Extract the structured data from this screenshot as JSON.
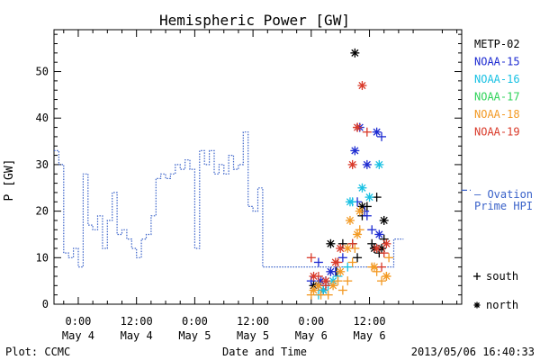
{
  "chart_data": {
    "type": "scatter",
    "title": "Hemispheric Power [GW]",
    "xlabel": "Date and Time",
    "ylabel": "P [GW]",
    "ylim": [
      0,
      59
    ],
    "xlim": [
      -5,
      79
    ],
    "x_unit": "hours since 2013-05-04 00:00 UT",
    "x_ticks": [
      {
        "x": 0,
        "time": "0:00",
        "date": "May 4"
      },
      {
        "x": 12,
        "time": "12:00",
        "date": "May 4"
      },
      {
        "x": 24,
        "time": "0:00",
        "date": "May 5"
      },
      {
        "x": 36,
        "time": "12:00",
        "date": "May 5"
      },
      {
        "x": 48,
        "time": "0:00",
        "date": "May 6"
      },
      {
        "x": 60,
        "time": "12:00",
        "date": "May 6"
      }
    ],
    "y_ticks": [
      0,
      10,
      20,
      30,
      40,
      50
    ],
    "grid": false,
    "legend_position": "right",
    "ovation_label_1": "— Ovation",
    "ovation_label_2": "Prime HPI",
    "ovation": {
      "name": "Ovation Prime HPI",
      "color": "#3a62c9",
      "step_x": [
        -5,
        -4,
        -3,
        -2,
        -1,
        0,
        1,
        2,
        3,
        4,
        5,
        6,
        7,
        8,
        9,
        10,
        11,
        12,
        13,
        14,
        15,
        16,
        17,
        18,
        19,
        20,
        21,
        22,
        23,
        24,
        25,
        26,
        27,
        28,
        29,
        30,
        31,
        32,
        33,
        34,
        35,
        36,
        37,
        38,
        39,
        40,
        41,
        42,
        43,
        44,
        45,
        46,
        47,
        48,
        49,
        50,
        51,
        52,
        53,
        54,
        55,
        56,
        57,
        58,
        59,
        60,
        61,
        62,
        63,
        64,
        65,
        66
      ],
      "step_y": [
        33,
        30,
        11,
        10,
        12,
        8,
        28,
        17,
        16,
        19,
        12,
        18,
        24,
        15,
        16,
        14,
        12,
        10,
        14,
        15,
        19,
        27,
        28,
        27,
        28,
        30,
        29,
        31,
        29,
        12,
        33,
        30,
        33,
        28,
        30,
        28,
        32,
        29,
        30,
        37,
        21,
        20,
        25,
        8,
        8,
        8,
        8,
        8,
        8,
        8,
        8,
        8,
        8,
        8,
        8,
        8,
        8,
        8,
        8,
        8,
        8,
        8,
        8,
        8,
        8,
        8,
        8,
        8,
        8,
        8,
        14,
        14
      ],
      "current_level": 24.5
    },
    "series": [
      {
        "name": "METP-02",
        "color": "#000000",
        "south": [
          [
            53.2,
            7
          ],
          [
            54.5,
            13
          ],
          [
            56.5,
            13
          ],
          [
            57.5,
            10
          ],
          [
            58.5,
            19
          ],
          [
            59.5,
            21
          ],
          [
            60.5,
            13
          ],
          [
            61,
            12
          ],
          [
            62,
            11
          ],
          [
            63,
            14
          ],
          [
            61.5,
            23
          ]
        ],
        "north": [
          [
            48.5,
            4
          ],
          [
            49.5,
            4
          ],
          [
            50.5,
            3
          ],
          [
            52,
            13
          ],
          [
            57,
            54
          ],
          [
            58.5,
            21
          ],
          [
            61,
            12
          ],
          [
            63,
            18
          ],
          [
            62.5,
            12
          ]
        ]
      },
      {
        "name": "NOAA-15",
        "color": "#1d2bd1",
        "south": [
          [
            48,
            5
          ],
          [
            49.5,
            9
          ],
          [
            51,
            5
          ],
          [
            53,
            7
          ],
          [
            54.5,
            10
          ],
          [
            57.5,
            22
          ],
          [
            59,
            20
          ],
          [
            59.5,
            19
          ],
          [
            60.5,
            16
          ],
          [
            62.5,
            36
          ]
        ],
        "north": [
          [
            50,
            5
          ],
          [
            52,
            7
          ],
          [
            57,
            33
          ],
          [
            58,
            38
          ],
          [
            59.5,
            30
          ],
          [
            61.5,
            37
          ],
          [
            62,
            15
          ]
        ]
      },
      {
        "name": "NOAA-16",
        "color": "#19c1e3",
        "south": [
          [
            49.5,
            2
          ],
          [
            51.5,
            4
          ],
          [
            53.5,
            6
          ],
          [
            55.5,
            8
          ],
          [
            56.5,
            22
          ]
        ],
        "north": [
          [
            50.5,
            3
          ],
          [
            52.5,
            5
          ],
          [
            56,
            22
          ],
          [
            58.5,
            25
          ],
          [
            60,
            23
          ],
          [
            62,
            30
          ]
        ]
      },
      {
        "name": "NOAA-17",
        "color": "#2fd35a",
        "south": [],
        "north": []
      },
      {
        "name": "NOAA-18",
        "color": "#f39a24",
        "south": [
          [
            48,
            2
          ],
          [
            50,
            2
          ],
          [
            51.5,
            2
          ],
          [
            53.5,
            5
          ],
          [
            54.5,
            3
          ],
          [
            55.5,
            5
          ],
          [
            56.5,
            9
          ],
          [
            57,
            12
          ],
          [
            58,
            16
          ],
          [
            60.5,
            8
          ],
          [
            61.5,
            7
          ],
          [
            62.5,
            5
          ],
          [
            63.5,
            6
          ],
          [
            64,
            10
          ]
        ],
        "north": [
          [
            48.5,
            3
          ],
          [
            49.5,
            4
          ],
          [
            52.5,
            4
          ],
          [
            54,
            7
          ],
          [
            55.5,
            12
          ],
          [
            56,
            18
          ],
          [
            57.5,
            15
          ],
          [
            58,
            20
          ],
          [
            61,
            8
          ],
          [
            63.5,
            6
          ]
        ]
      },
      {
        "name": "NOAA-19",
        "color": "#d93a2a",
        "south": [
          [
            48,
            10
          ],
          [
            49.5,
            6
          ],
          [
            51,
            4
          ],
          [
            53.5,
            9
          ],
          [
            56.5,
            13
          ],
          [
            57.5,
            38
          ],
          [
            59.5,
            37
          ],
          [
            62.5,
            8
          ],
          [
            63,
            11
          ]
        ],
        "north": [
          [
            48.5,
            6
          ],
          [
            51,
            5
          ],
          [
            53,
            9
          ],
          [
            54,
            12
          ],
          [
            56.5,
            30
          ],
          [
            57.5,
            38
          ],
          [
            58.5,
            47
          ],
          [
            61.5,
            12
          ],
          [
            63.5,
            13
          ]
        ]
      }
    ],
    "marker_legend": {
      "south_label": "south",
      "north_label": "north"
    }
  },
  "footer": {
    "left": "Plot: CCMC",
    "center": "Date and Time",
    "right": "2013/05/06 16:40:33"
  }
}
